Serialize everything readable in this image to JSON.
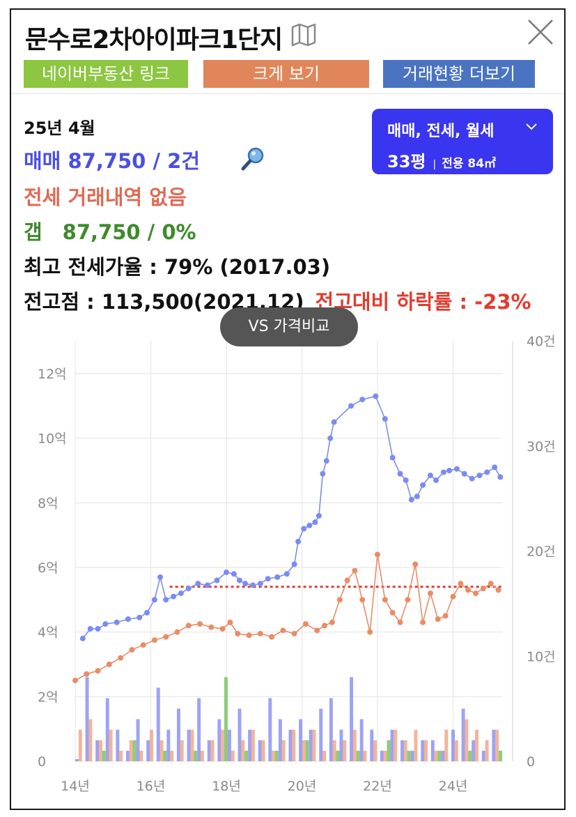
{
  "header": {
    "title": "문수로2차아이파크1단지",
    "close_icon": "close-icon",
    "map_icon": "map-icon"
  },
  "buttons": {
    "naver": "네이버부동산 링크",
    "large": "크게 보기",
    "history": "거래현황 더보기"
  },
  "colors": {
    "naver_btn": "#8dc641",
    "large_btn": "#e1865a",
    "history_btn": "#4a74c2",
    "dropdown": "#3a35ee",
    "sale": "#4b4fe0",
    "jeonse": "#e06a55",
    "gap": "#3e8a2c",
    "drop_rate": "#e23b2f",
    "reference_line": "#e03c31"
  },
  "info": {
    "date": "25년 4월",
    "sale_text": "매매 87,750 / 2건",
    "jeonse_text": "전세 거래내역 없음",
    "gap_text": "갭　87,750 / 0%",
    "max_rate_text": "최고 전세가율 : 79% (2017.03)",
    "peak_text": "전고점 : 113,500(2021.12)",
    "drop_text": "전고대비 하락률 : -23%"
  },
  "dropdown": {
    "types": "매매, 전세, 월세",
    "pyeong": "33평",
    "area": "전용 84㎡"
  },
  "vs_button": "VS 가격비교",
  "chart_data": {
    "type": "line",
    "x_ticks": [
      "14년",
      "16년",
      "18년",
      "20년",
      "22년",
      "24년"
    ],
    "x_range": [
      2014.0,
      2025.3
    ],
    "y_left_ticks": [
      "0",
      "2억",
      "4억",
      "6억",
      "8억",
      "10억",
      "12억"
    ],
    "y_left_range_eok": [
      0,
      12
    ],
    "y_right_ticks": [
      "0",
      "10건",
      "20건",
      "30건",
      "40건"
    ],
    "y_right_range_count": [
      0,
      40
    ],
    "reference_line_eok": 5.4,
    "series": [
      {
        "color": "#7b8cf0",
        "points": [
          [
            2014.2,
            3.8
          ],
          [
            2014.4,
            4.1
          ],
          [
            2014.6,
            4.1
          ],
          [
            2014.8,
            4.25
          ],
          [
            2015.1,
            4.3
          ],
          [
            2015.4,
            4.4
          ],
          [
            2015.7,
            4.45
          ],
          [
            2015.9,
            4.6
          ],
          [
            2016.1,
            5.0
          ],
          [
            2016.25,
            5.7
          ],
          [
            2016.4,
            5.0
          ],
          [
            2016.6,
            5.1
          ],
          [
            2016.8,
            5.2
          ],
          [
            2017.0,
            5.35
          ],
          [
            2017.25,
            5.5
          ],
          [
            2017.5,
            5.45
          ],
          [
            2017.75,
            5.6
          ],
          [
            2018.0,
            5.85
          ],
          [
            2018.2,
            5.8
          ],
          [
            2018.35,
            5.6
          ],
          [
            2018.5,
            5.5
          ],
          [
            2018.7,
            5.45
          ],
          [
            2018.9,
            5.5
          ],
          [
            2019.1,
            5.65
          ],
          [
            2019.35,
            5.7
          ],
          [
            2019.6,
            5.8
          ],
          [
            2019.8,
            6.1
          ],
          [
            2019.9,
            6.8
          ],
          [
            2020.05,
            7.2
          ],
          [
            2020.2,
            7.3
          ],
          [
            2020.35,
            7.4
          ],
          [
            2020.45,
            7.6
          ],
          [
            2020.55,
            8.9
          ],
          [
            2020.65,
            9.3
          ],
          [
            2020.75,
            10.0
          ],
          [
            2020.85,
            10.5
          ],
          [
            2021.3,
            11.0
          ],
          [
            2021.6,
            11.2
          ],
          [
            2021.95,
            11.3
          ],
          [
            2022.2,
            10.6
          ],
          [
            2022.4,
            9.4
          ],
          [
            2022.6,
            8.9
          ],
          [
            2022.75,
            8.7
          ],
          [
            2022.9,
            8.1
          ],
          [
            2023.05,
            8.2
          ],
          [
            2023.2,
            8.55
          ],
          [
            2023.4,
            8.85
          ],
          [
            2023.55,
            8.7
          ],
          [
            2023.75,
            8.95
          ],
          [
            2023.9,
            9.0
          ],
          [
            2024.1,
            9.05
          ],
          [
            2024.3,
            8.9
          ],
          [
            2024.5,
            8.75
          ],
          [
            2024.7,
            8.85
          ],
          [
            2024.9,
            8.95
          ],
          [
            2025.1,
            9.1
          ],
          [
            2025.25,
            8.8
          ]
        ]
      },
      {
        "color": "#ea8c66",
        "points": [
          [
            2014.0,
            2.5
          ],
          [
            2014.3,
            2.7
          ],
          [
            2014.6,
            2.8
          ],
          [
            2014.9,
            3.0
          ],
          [
            2015.2,
            3.2
          ],
          [
            2015.5,
            3.45
          ],
          [
            2015.8,
            3.6
          ],
          [
            2016.1,
            3.75
          ],
          [
            2016.4,
            3.85
          ],
          [
            2016.7,
            4.0
          ],
          [
            2017.0,
            4.2
          ],
          [
            2017.3,
            4.25
          ],
          [
            2017.6,
            4.15
          ],
          [
            2017.9,
            4.1
          ],
          [
            2018.1,
            4.3
          ],
          [
            2018.3,
            3.95
          ],
          [
            2018.6,
            3.9
          ],
          [
            2018.9,
            3.95
          ],
          [
            2019.2,
            3.85
          ],
          [
            2019.5,
            4.05
          ],
          [
            2019.8,
            3.95
          ],
          [
            2020.1,
            4.25
          ],
          [
            2020.4,
            4.05
          ],
          [
            2020.6,
            4.2
          ],
          [
            2020.8,
            4.3
          ],
          [
            2021.0,
            5.0
          ],
          [
            2021.2,
            5.6
          ],
          [
            2021.4,
            5.9
          ],
          [
            2021.6,
            5.0
          ],
          [
            2021.8,
            4.0
          ],
          [
            2022.0,
            6.4
          ],
          [
            2022.2,
            5.0
          ],
          [
            2022.4,
            4.6
          ],
          [
            2022.6,
            4.3
          ],
          [
            2022.8,
            5.0
          ],
          [
            2023.0,
            6.1
          ],
          [
            2023.2,
            4.3
          ],
          [
            2023.4,
            5.2
          ],
          [
            2023.6,
            4.4
          ],
          [
            2023.8,
            4.5
          ],
          [
            2024.0,
            5.1
          ],
          [
            2024.2,
            5.5
          ],
          [
            2024.4,
            5.3
          ],
          [
            2024.6,
            5.2
          ],
          [
            2024.8,
            5.35
          ],
          [
            2025.0,
            5.5
          ],
          [
            2025.2,
            5.3
          ]
        ]
      }
    ],
    "volume_bars": {
      "blue_counts": [
        0.2,
        8,
        2,
        6,
        3,
        1,
        4,
        2,
        7,
        3,
        5,
        3,
        6,
        2,
        4,
        3,
        5,
        3,
        2,
        6,
        4,
        3,
        4,
        3,
        5,
        6,
        3,
        8,
        4,
        3,
        1,
        3,
        2,
        1,
        2,
        2,
        1,
        3,
        5,
        2,
        1,
        3
      ],
      "orange_counts": [
        3,
        4,
        2,
        3,
        1,
        2,
        1,
        3,
        2,
        1,
        2,
        3,
        1,
        2,
        3,
        1,
        2,
        3,
        2,
        1,
        2,
        3,
        2,
        3,
        1,
        2,
        2,
        3,
        1,
        2,
        1,
        3,
        2,
        3,
        2,
        1,
        3,
        2,
        4,
        3,
        2,
        3
      ],
      "green_counts": [
        0,
        0,
        1,
        0,
        0,
        2,
        0,
        0,
        1,
        0,
        0,
        1,
        0,
        0,
        8,
        0,
        1,
        0,
        0,
        1,
        0,
        0,
        2,
        0,
        0,
        1,
        0,
        1,
        0,
        0,
        2,
        0,
        1,
        0,
        0,
        1,
        0,
        0,
        1,
        0,
        0,
        1
      ]
    }
  }
}
